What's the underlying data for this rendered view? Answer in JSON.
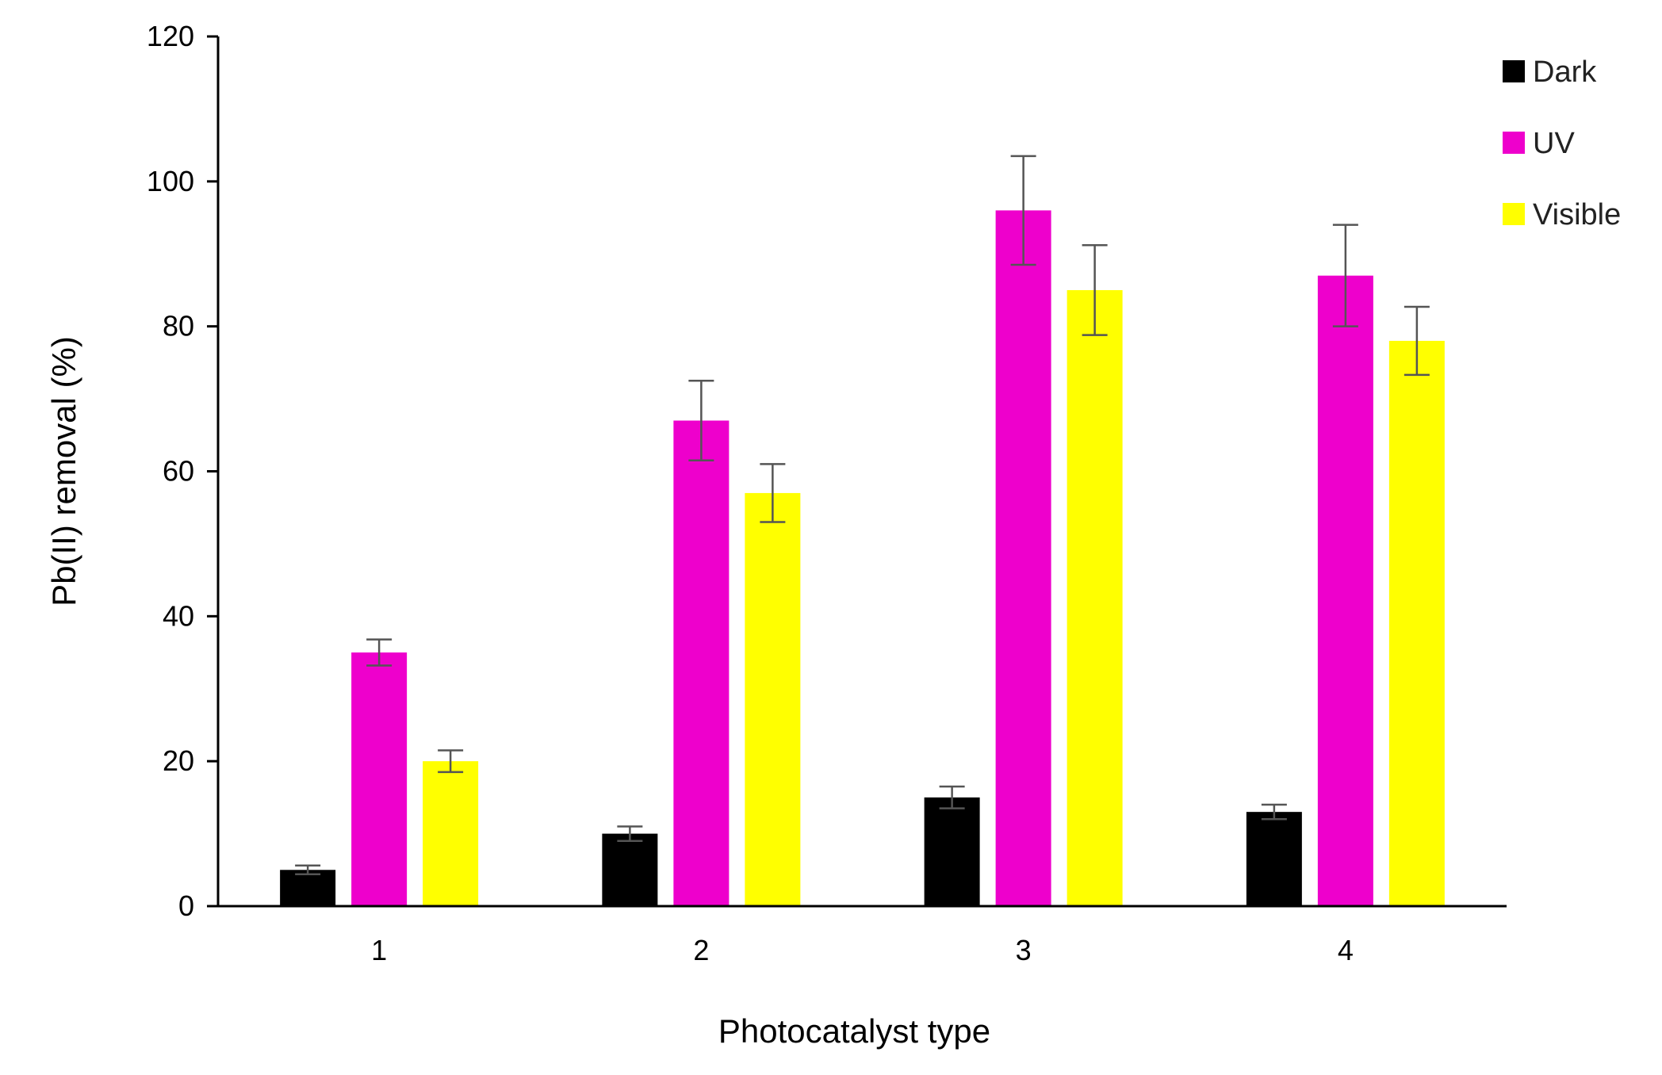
{
  "chart_data": {
    "type": "bar",
    "title": "",
    "xlabel": "Photocatalyst type",
    "ylabel": "Pb(II)  removal (%)",
    "categories": [
      "1",
      "2",
      "3",
      "4"
    ],
    "ylim": [
      0,
      120
    ],
    "yticks": [
      "0",
      "20",
      "40",
      "60",
      "80",
      "100",
      "120"
    ],
    "legend_position": "top-right",
    "series": [
      {
        "name": "Dark",
        "color": "#000000",
        "values": [
          5,
          10,
          15,
          13
        ],
        "errors": [
          0.6,
          1.0,
          1.5,
          1.0
        ]
      },
      {
        "name": "UV",
        "color": "#ee00cc",
        "values": [
          35,
          67,
          96,
          87
        ],
        "errors": [
          1.8,
          5.5,
          7.5,
          7.0
        ]
      },
      {
        "name": "Visible",
        "color": "#ffff00",
        "values": [
          20,
          57,
          85,
          78
        ],
        "errors": [
          1.5,
          4.0,
          6.2,
          4.7
        ]
      }
    ]
  }
}
